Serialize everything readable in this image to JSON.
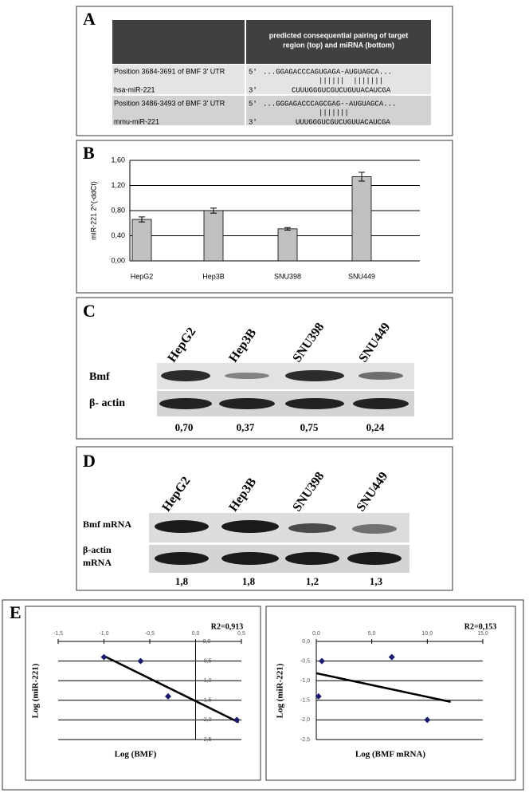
{
  "panel_a": {
    "label": "A",
    "header_lines": [
      "predicted consequential pairing of target",
      "region (top) and miRNA (bottom)"
    ],
    "rows": [
      {
        "region": "Position 3684-3691 of BMF 3' UTR",
        "top_prime": "5'",
        "top": "...GGAGACCCAGUGAGA-AUGUAGCA...",
        "pairing": "||||||  |||||||",
        "mirna": "hsa-miR-221",
        "bottom_prime": "3'",
        "bottom": "CUUUGGGUCGUCUGUUACAUCGA"
      },
      {
        "region": "Position 3486-3493 of BMF 3' UTR",
        "top_prime": "5'",
        "top": "...GGGAGACCCAGCGAG--AUGUAGCA...",
        "pairing": "|||||||",
        "mirna": "mmu-miR-221",
        "bottom_prime": "3'",
        "bottom": "UUUGGGUCGUCUGUUACAUCGA"
      }
    ]
  },
  "chart_data": [
    {
      "type": "bar",
      "panel_label": "B",
      "y_label": "miR-221 2^(-ddCt)",
      "categories": [
        "HepG2",
        "Hep3B",
        "SNU398",
        "SNU449"
      ],
      "values": [
        0.66,
        0.8,
        0.51,
        1.34
      ],
      "errors": [
        0.04,
        0.04,
        0.02,
        0.07
      ],
      "color": "#c0c0c0",
      "grid": true,
      "ylim": [
        0,
        1.6
      ],
      "yticks": [
        {
          "value": 0,
          "label": "0,00"
        },
        {
          "value": 0.4,
          "label": "0,40"
        },
        {
          "value": 0.8,
          "label": "0,80"
        },
        {
          "value": 1.2,
          "label": "1,20"
        },
        {
          "value": 1.6,
          "label": "1,60"
        }
      ]
    },
    {
      "type": "scatter",
      "panel_label": "E",
      "annotation": "R2=0,913",
      "x_label": "Log (BMF)",
      "y_label": "Log (miR-221)",
      "x": [
        -1.0,
        -0.6,
        -0.3,
        0.45
      ],
      "values": [
        -0.4,
        -0.5,
        -1.4,
        -2.0
      ],
      "color": "#1a1a6e",
      "grid": true,
      "trendline": {
        "x": [
          -1.0,
          0.47
        ],
        "y": [
          -0.37,
          -2.06
        ]
      },
      "xlim": [
        -1.5,
        0.5
      ],
      "ylim": [
        -2.5,
        0
      ],
      "xticks": [
        {
          "value": -1.5,
          "label": "-1,5"
        },
        {
          "value": -1.0,
          "label": "-1,0"
        },
        {
          "value": -0.5,
          "label": "-0,5"
        },
        {
          "value": 0,
          "label": "0,0"
        },
        {
          "value": 0.5,
          "label": "0,5"
        }
      ],
      "yticks": [
        {
          "value": 0,
          "label": "0,0"
        },
        {
          "value": -0.5,
          "label": "-0,5"
        },
        {
          "value": -1.0,
          "label": "-1,0"
        },
        {
          "value": -1.5,
          "label": "-1,5"
        },
        {
          "value": -2.0,
          "label": "-2,0"
        },
        {
          "value": -2.5,
          "label": "-2,5"
        }
      ]
    },
    {
      "type": "scatter",
      "annotation": "R2=0,153",
      "x_label": "Log (BMF mRNA)",
      "y_label": "Log (miR-221)",
      "x": [
        0.5,
        0.2,
        6.8,
        10.0
      ],
      "values": [
        -0.5,
        -1.4,
        -0.4,
        -2.0
      ],
      "color": "#1a1a6e",
      "grid": true,
      "trendline": {
        "x": [
          0,
          12.1
        ],
        "y": [
          -0.81,
          -1.54
        ]
      },
      "xlim": [
        0,
        15
      ],
      "ylim": [
        -2.5,
        0
      ],
      "xticks": [
        {
          "value": 0,
          "label": "0,0"
        },
        {
          "value": 5,
          "label": "5,0"
        },
        {
          "value": 10,
          "label": "10,0"
        },
        {
          "value": 15,
          "label": "15,0"
        }
      ],
      "yticks": [
        {
          "value": 0,
          "label": "0,0"
        },
        {
          "value": -0.5,
          "label": "-0,5"
        },
        {
          "value": -1.0,
          "label": "-1,0"
        },
        {
          "value": -1.5,
          "label": "-1,5"
        },
        {
          "value": -2.0,
          "label": "-2,0"
        },
        {
          "value": -2.5,
          "label": "-2,5"
        }
      ]
    }
  ],
  "panel_c": {
    "label": "C",
    "lanes": [
      "HepG2",
      "Hep3B",
      "SNU398",
      "SNU449"
    ],
    "rows": [
      "Bmf",
      "β- actin"
    ],
    "ratios": [
      "0,70",
      "0,37",
      "0,75",
      "0,24"
    ]
  },
  "panel_d": {
    "label": "D",
    "lanes": [
      "HepG2",
      "Hep3B",
      "SNU398",
      "SNU449"
    ],
    "rows": [
      [
        "Bmf mRNA"
      ],
      [
        "β-actin",
        "mRNA"
      ]
    ],
    "ratios": [
      "1,8",
      "1,8",
      "1,2",
      "1,3"
    ]
  }
}
